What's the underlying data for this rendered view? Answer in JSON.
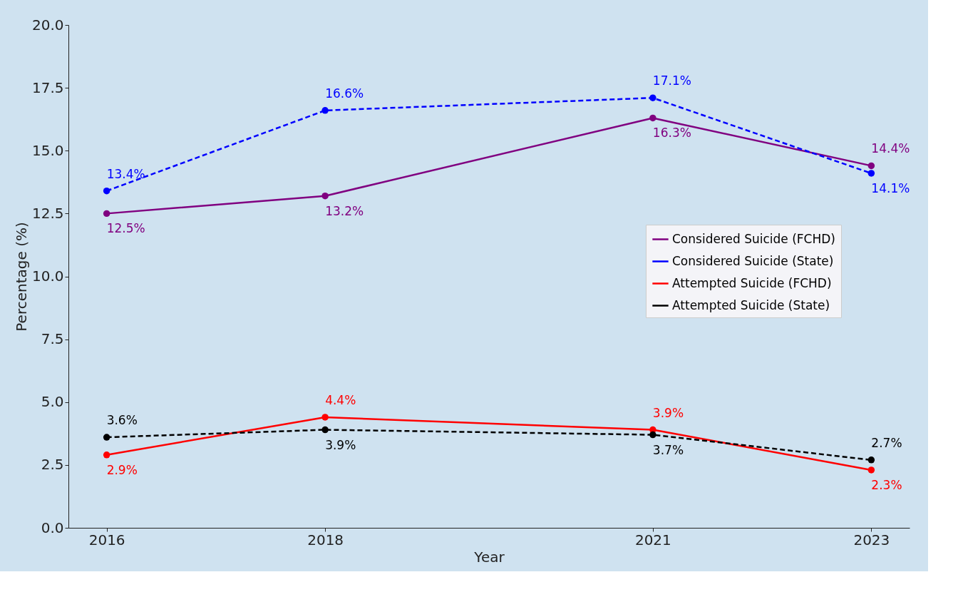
{
  "chart_data": {
    "type": "line",
    "xlabel": "Year",
    "ylabel": "Percentage (%)",
    "x": [
      2016,
      2018,
      2021,
      2023
    ],
    "xlim": [
      2015.65,
      2023.35
    ],
    "xticks": [
      2016,
      2018,
      2021,
      2023
    ],
    "ylim": [
      0,
      20
    ],
    "yticks": [
      {
        "value": 0,
        "label": "0.0"
      },
      {
        "value": 2.5,
        "label": "2.5"
      },
      {
        "value": 5,
        "label": "5.0"
      },
      {
        "value": 7.5,
        "label": "7.5"
      },
      {
        "value": 10,
        "label": "10.0"
      },
      {
        "value": 12.5,
        "label": "12.5"
      },
      {
        "value": 15,
        "label": "15.0"
      },
      {
        "value": 17.5,
        "label": "17.5"
      },
      {
        "value": 20,
        "label": "20.0"
      }
    ],
    "grid": false,
    "legend": "right",
    "marker": "circle",
    "series": [
      {
        "name": "Considered Suicide (FCHD)",
        "color": "#800080",
        "line_style": "solid",
        "values": [
          12.5,
          13.2,
          16.3,
          14.4
        ],
        "value_labels": [
          "12.5%",
          "13.2%",
          "16.3%",
          "14.4%"
        ]
      },
      {
        "name": "Considered Suicide (State)",
        "color": "#0000ff",
        "line_style": "dashed",
        "values": [
          13.4,
          16.6,
          17.1,
          14.1
        ],
        "value_labels": [
          "13.4%",
          "16.6%",
          "17.1%",
          "14.1%"
        ]
      },
      {
        "name": "Attempted Suicide (FCHD)",
        "color": "#ff0000",
        "line_style": "solid",
        "values": [
          2.9,
          4.4,
          3.9,
          2.3
        ],
        "value_labels": [
          "2.9%",
          "4.4%",
          "3.9%",
          "2.3%"
        ]
      },
      {
        "name": "Attempted Suicide (State)",
        "color": "#000000",
        "line_style": "dashed",
        "values": [
          3.6,
          3.9,
          3.7,
          2.7
        ],
        "value_labels": [
          "3.6%",
          "3.9%",
          "3.7%",
          "2.7%"
        ]
      }
    ]
  }
}
